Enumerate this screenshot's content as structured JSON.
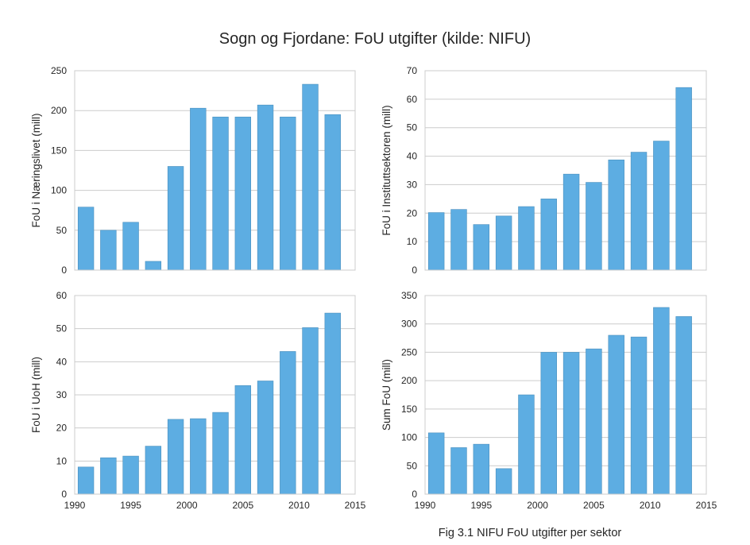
{
  "figure": {
    "title": "Sogn og Fjordane: FoU utgifter (kilde: NIFU)",
    "caption": "Fig 3.1 NIFU FoU utgifter per sektor"
  },
  "chart_data": [
    {
      "type": "bar",
      "panel": "top-left",
      "title": "",
      "xlabel": "",
      "ylabel": "FoU i Næringslivet (mill)",
      "x": [
        1991,
        1993,
        1995,
        1997,
        1999,
        2001,
        2003,
        2005,
        2007,
        2009,
        2011,
        2013
      ],
      "values": [
        79,
        50,
        60,
        11,
        130,
        203,
        192,
        192,
        207,
        192,
        233,
        195
      ],
      "xlim": [
        1990,
        2015
      ],
      "ylim": [
        0,
        250
      ],
      "yticks": [
        0,
        50,
        100,
        150,
        200,
        250
      ],
      "xticks": [],
      "grid": true
    },
    {
      "type": "bar",
      "panel": "top-right",
      "title": "",
      "xlabel": "",
      "ylabel": "FoU i Instituttsektoren (mill)",
      "x": [
        1991,
        1993,
        1995,
        1997,
        1999,
        2001,
        2003,
        2005,
        2007,
        2009,
        2011,
        2013
      ],
      "values": [
        20.2,
        21.3,
        16,
        19,
        22.3,
        25,
        33.7,
        30.8,
        38.7,
        41.4,
        45.3,
        64.1
      ],
      "xlim": [
        1990,
        2015
      ],
      "ylim": [
        0,
        70
      ],
      "yticks": [
        0,
        10,
        20,
        30,
        40,
        50,
        60,
        70
      ],
      "xticks": [],
      "grid": true
    },
    {
      "type": "bar",
      "panel": "bottom-left",
      "title": "",
      "xlabel": "",
      "ylabel": "FoU i UoH (mill)",
      "x": [
        1991,
        1993,
        1995,
        1997,
        1999,
        2001,
        2003,
        2005,
        2007,
        2009,
        2011,
        2013
      ],
      "values": [
        8.2,
        11,
        11.5,
        14.5,
        22.6,
        22.8,
        24.7,
        32.8,
        34.2,
        43.1,
        50.3,
        54.7
      ],
      "xlim": [
        1990,
        2015
      ],
      "ylim": [
        0,
        60
      ],
      "yticks": [
        0,
        10,
        20,
        30,
        40,
        50,
        60
      ],
      "xticks": [
        1990,
        1995,
        2000,
        2005,
        2010,
        2015
      ],
      "grid": true
    },
    {
      "type": "bar",
      "panel": "bottom-right",
      "title": "",
      "xlabel": "",
      "ylabel": "Sum FoU (mill)",
      "x": [
        1991,
        1993,
        1995,
        1997,
        1999,
        2001,
        2003,
        2005,
        2007,
        2009,
        2011,
        2013
      ],
      "values": [
        108,
        82,
        88,
        45,
        175,
        250,
        250,
        256,
        280,
        277,
        329,
        313
      ],
      "xlim": [
        1990,
        2015
      ],
      "ylim": [
        0,
        350
      ],
      "yticks": [
        0,
        50,
        100,
        150,
        200,
        250,
        300,
        350
      ],
      "xticks": [
        1990,
        1995,
        2000,
        2005,
        2010,
        2015
      ],
      "grid": true
    }
  ]
}
